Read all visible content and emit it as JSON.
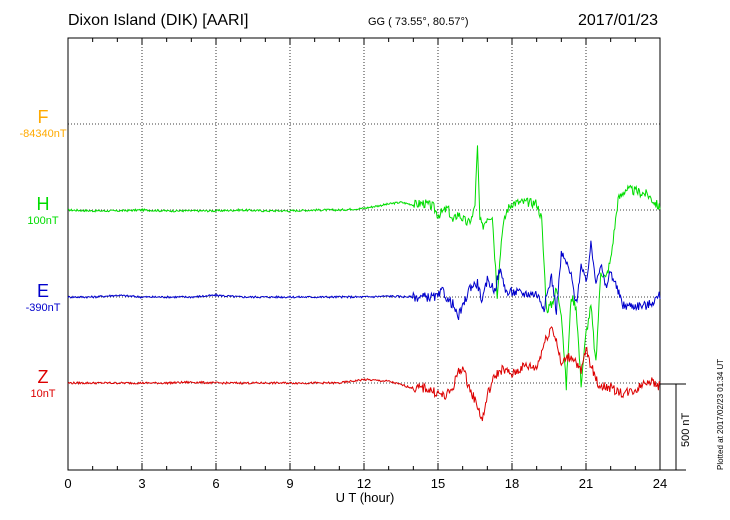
{
  "header": {
    "station": "Dixon Island (DIK)  [AARI]",
    "coords": "GG ( 73.55°,  80.57°)",
    "date": "2017/01/23"
  },
  "components": [
    {
      "name": "F",
      "baseline": "-84340nT",
      "color": "#ffaa00"
    },
    {
      "name": "H",
      "baseline": "100nT",
      "color": "#00dd00"
    },
    {
      "name": "E",
      "baseline": "-390nT",
      "color": "#0000cc"
    },
    {
      "name": "Z",
      "baseline": "10nT",
      "color": "#dd0000"
    }
  ],
  "scale_label": "500 nT",
  "plotted_note": "Plotted at 2017/02/23 01:34 UT",
  "chart_data": {
    "type": "line",
    "title": "Dixon Island (DIK)  [AARI]",
    "xlabel": "U T (hour)",
    "xlim": [
      0,
      24
    ],
    "xticks": [
      0,
      3,
      6,
      9,
      12,
      15,
      18,
      21,
      24
    ],
    "grid": true,
    "scale_bar_nT": 500,
    "series": [
      {
        "name": "H",
        "baseline_nT": 100,
        "color": "#00dd00",
        "x": [
          0,
          1,
          2,
          3,
          4,
          5,
          6,
          7,
          8,
          9,
          10,
          11,
          12,
          13,
          13.5,
          14,
          14.4,
          14.8,
          15,
          15.2,
          15.4,
          15.6,
          15.8,
          16,
          16.2,
          16.4,
          16.5,
          16.6,
          16.7,
          16.8,
          17,
          17.2,
          17.4,
          17.6,
          17.8,
          18,
          18.5,
          19,
          19.2,
          19.4,
          19.6,
          19.8,
          20,
          20.2,
          20.4,
          20.6,
          20.8,
          21,
          21.2,
          21.4,
          21.6,
          21.8,
          22,
          22.3,
          22.6,
          23,
          23.5,
          24
        ],
        "y": [
          0,
          -5,
          -5,
          0,
          -5,
          -5,
          -5,
          0,
          -5,
          -5,
          0,
          0,
          10,
          35,
          45,
          30,
          40,
          20,
          -30,
          -10,
          10,
          -70,
          -20,
          -50,
          -80,
          -40,
          40,
          360,
          -60,
          -100,
          -40,
          -30,
          -490,
          -120,
          0,
          40,
          45,
          40,
          -50,
          -580,
          -550,
          -460,
          -590,
          -1030,
          -500,
          -560,
          -1010,
          -720,
          -560,
          -900,
          -350,
          -400,
          -290,
          60,
          120,
          110,
          90,
          10
        ]
      },
      {
        "name": "E",
        "baseline_nT": -390,
        "color": "#0000cc",
        "x": [
          0,
          1,
          2,
          3,
          4,
          5,
          6,
          7,
          8,
          9,
          10,
          11,
          12,
          13,
          14,
          14.5,
          15,
          15.2,
          15.4,
          15.6,
          15.8,
          16,
          16.3,
          16.6,
          16.8,
          17,
          17.3,
          17.5,
          17.8,
          18,
          18.5,
          19,
          19.3,
          19.6,
          19.8,
          20,
          20.2,
          20.4,
          20.6,
          20.8,
          21,
          21.2,
          21.4,
          21.6,
          21.8,
          22,
          22.5,
          23,
          23.5,
          24
        ],
        "y": [
          0,
          0,
          10,
          0,
          0,
          0,
          10,
          0,
          0,
          0,
          0,
          0,
          0,
          5,
          0,
          0,
          0,
          40,
          -20,
          -40,
          -120,
          -60,
          60,
          80,
          -30,
          100,
          40,
          160,
          20,
          30,
          20,
          20,
          -60,
          120,
          -80,
          250,
          200,
          120,
          -40,
          180,
          80,
          300,
          100,
          190,
          50,
          150,
          -50,
          -50,
          -50,
          10
        ]
      },
      {
        "name": "Z",
        "baseline_nT": 10,
        "color": "#dd0000",
        "x": [
          0,
          1,
          2,
          3,
          4,
          5,
          6,
          7,
          8,
          9,
          10,
          11,
          12,
          13,
          14,
          14.5,
          15,
          15.3,
          15.6,
          15.8,
          16,
          16.3,
          16.6,
          16.8,
          17,
          17.3,
          17.6,
          18,
          18.5,
          19,
          19.3,
          19.6,
          19.8,
          20,
          20.2,
          20.5,
          20.8,
          21,
          21.2,
          21.5,
          22,
          22.5,
          23,
          23.5,
          24
        ],
        "y": [
          0,
          0,
          0,
          0,
          0,
          5,
          0,
          0,
          0,
          0,
          0,
          0,
          20,
          10,
          -30,
          -30,
          -60,
          -80,
          -30,
          60,
          90,
          -40,
          -130,
          -220,
          -70,
          40,
          80,
          50,
          100,
          90,
          230,
          330,
          250,
          100,
          150,
          150,
          60,
          200,
          100,
          -10,
          -30,
          -60,
          -40,
          20,
          -20
        ]
      }
    ]
  }
}
